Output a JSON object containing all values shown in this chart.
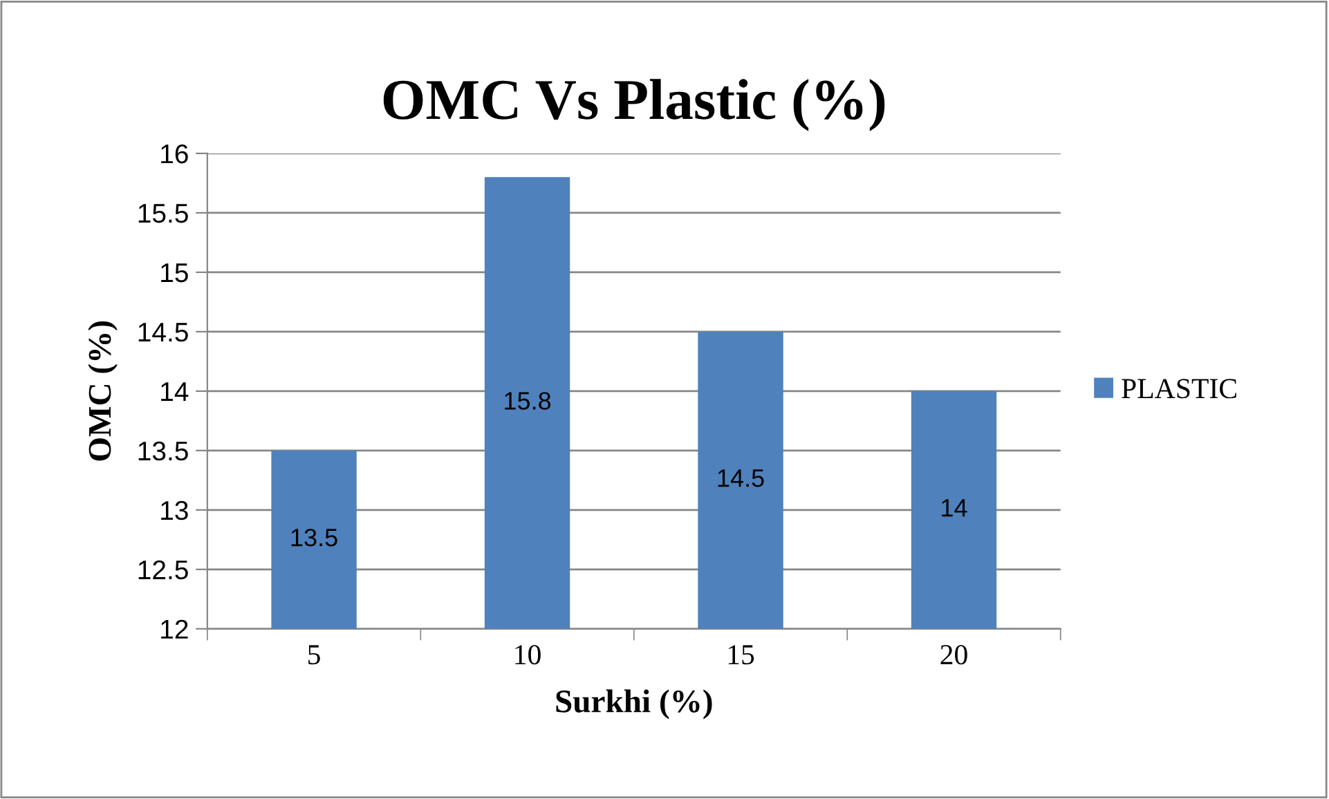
{
  "chart_data": {
    "type": "bar",
    "title": "OMC Vs Plastic (%)",
    "xlabel": "Surkhi (%)",
    "ylabel": "OMC (%)",
    "categories": [
      "5",
      "10",
      "15",
      "20"
    ],
    "series": [
      {
        "name": "PLASTIC",
        "color": "#4f81bd",
        "values": [
          13.5,
          15.8,
          14.5,
          14
        ]
      }
    ],
    "ylim": [
      12,
      16
    ],
    "yticks": [
      12,
      12.5,
      13,
      13.5,
      14,
      14.5,
      15,
      15.5,
      16
    ],
    "grid": "y",
    "legend": "right",
    "data_labels": true
  }
}
